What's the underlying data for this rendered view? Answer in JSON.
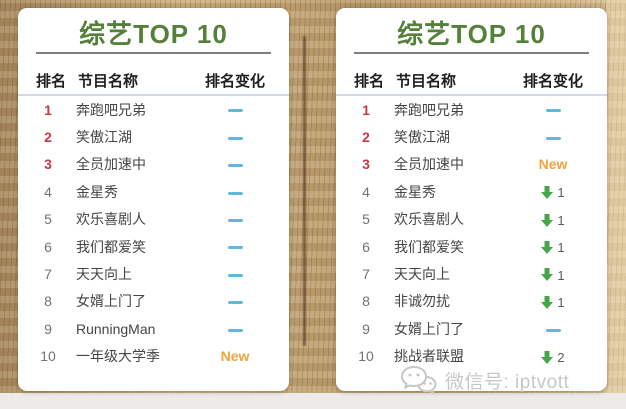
{
  "colors": {
    "title_green": "#55803a",
    "rank_red": "#c43b44",
    "rank_gray": "#737373",
    "text_dark": "#1f1f1f",
    "dash_blue": "#62b8dc",
    "new_orange": "#efa43c",
    "down_green": "#45a649",
    "divider_gray": "#7f7f7f",
    "header_underline": "#d3d9ea",
    "watermark_gray": "#c7c7c5"
  },
  "icons": {
    "no_change": "dash",
    "rank_down": "down-arrow",
    "watermark": "wechat-logo"
  },
  "watermark": {
    "text": "微信号: iptvott"
  },
  "cards": [
    {
      "title": "综艺TOP 10",
      "columns": {
        "rank": "排名",
        "name": "节目名称",
        "change": "排名变化"
      },
      "rows": [
        {
          "rank": "1",
          "name": "奔跑吧兄弟",
          "change": {
            "type": "same"
          }
        },
        {
          "rank": "2",
          "name": "笑傲江湖",
          "change": {
            "type": "same"
          }
        },
        {
          "rank": "3",
          "name": "全员加速中",
          "change": {
            "type": "same"
          }
        },
        {
          "rank": "4",
          "name": "金星秀",
          "change": {
            "type": "same"
          }
        },
        {
          "rank": "5",
          "name": "欢乐喜剧人",
          "change": {
            "type": "same"
          }
        },
        {
          "rank": "6",
          "name": "我们都爱笑",
          "change": {
            "type": "same"
          }
        },
        {
          "rank": "7",
          "name": "天天向上",
          "change": {
            "type": "same"
          }
        },
        {
          "rank": "8",
          "name": "女婿上门了",
          "change": {
            "type": "same"
          }
        },
        {
          "rank": "9",
          "name": "RunningMan",
          "change": {
            "type": "same"
          }
        },
        {
          "rank": "10",
          "name": "一年级大学季",
          "change": {
            "type": "new",
            "label": "New"
          }
        }
      ]
    },
    {
      "title": "综艺TOP 10",
      "columns": {
        "rank": "排名",
        "name": "节目名称",
        "change": "排名变化"
      },
      "rows": [
        {
          "rank": "1",
          "name": "奔跑吧兄弟",
          "change": {
            "type": "same"
          }
        },
        {
          "rank": "2",
          "name": "笑傲江湖",
          "change": {
            "type": "same"
          }
        },
        {
          "rank": "3",
          "name": "全员加速中",
          "change": {
            "type": "new",
            "label": "New"
          }
        },
        {
          "rank": "4",
          "name": "金星秀",
          "change": {
            "type": "down",
            "value": "1"
          }
        },
        {
          "rank": "5",
          "name": "欢乐喜剧人",
          "change": {
            "type": "down",
            "value": "1"
          }
        },
        {
          "rank": "6",
          "name": "我们都爱笑",
          "change": {
            "type": "down",
            "value": "1"
          }
        },
        {
          "rank": "7",
          "name": "天天向上",
          "change": {
            "type": "down",
            "value": "1"
          }
        },
        {
          "rank": "8",
          "name": "非诚勿扰",
          "change": {
            "type": "down",
            "value": "1"
          }
        },
        {
          "rank": "9",
          "name": "女婿上门了",
          "change": {
            "type": "same"
          }
        },
        {
          "rank": "10",
          "name": "挑战者联盟",
          "change": {
            "type": "down",
            "value": "2"
          }
        }
      ]
    }
  ]
}
